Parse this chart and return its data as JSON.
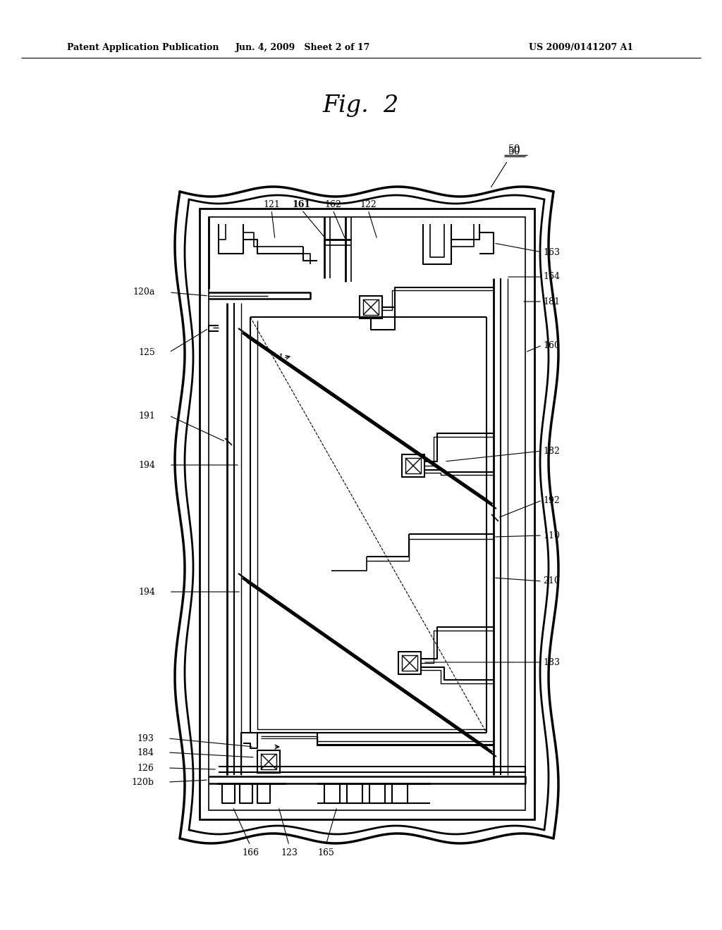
{
  "bg_color": "#ffffff",
  "line_color": "#000000",
  "title": "Fig.  2",
  "header_left": "Patent Application Publication",
  "header_mid": "Jun. 4, 2009   Sheet 2 of 17",
  "header_right": "US 2009/0141207 A1"
}
